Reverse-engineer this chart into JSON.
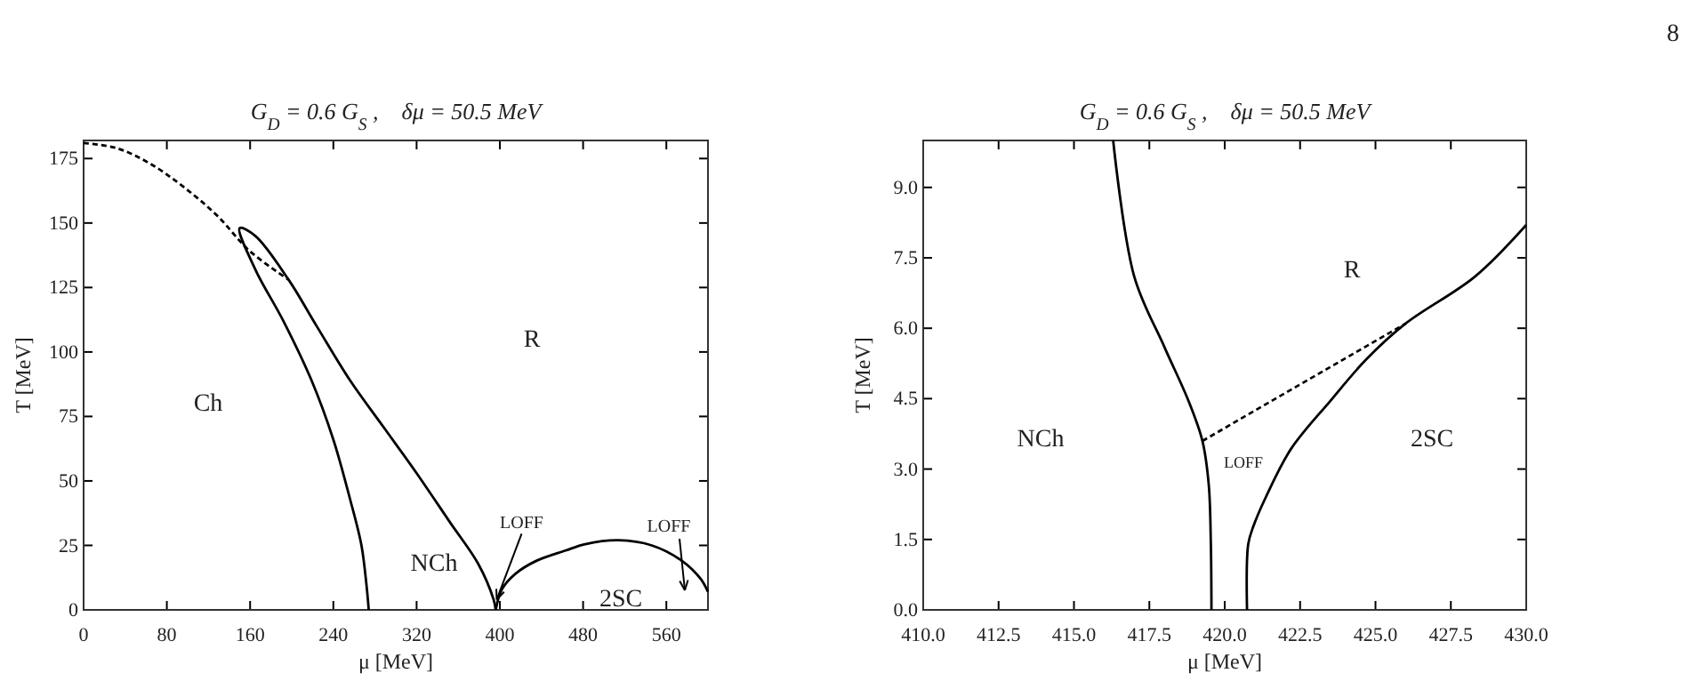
{
  "chart_data": [
    {
      "type": "line",
      "title": "G$_{D}$ = 0.6 G$_{S}$ ,    δμ = 50.5 MeV",
      "xlabel": "μ [MeV]",
      "ylabel": "T [MeV]",
      "xlim": [
        0,
        600
      ],
      "ylim": [
        0,
        182
      ],
      "xticks": [
        0,
        80,
        160,
        240,
        320,
        400,
        480,
        560
      ],
      "yticks": [
        0,
        25,
        50,
        75,
        100,
        125,
        150,
        175
      ],
      "grid": false,
      "series": [
        {
          "color": "#000000",
          "line_style": "dashed",
          "x": [
            0,
            32,
            64,
            96,
            128,
            160,
            197
          ],
          "values": [
            181,
            179,
            173,
            164,
            153,
            139,
            128
          ]
        },
        {
          "color": "#000000",
          "line_style": "solid",
          "x": [
            274,
            272,
            267,
            256,
            240,
            219,
            192,
            165,
            150,
            165,
            197,
            224,
            256,
            288,
            320,
            352,
            379,
            394,
            396
          ],
          "values": [
            0,
            9,
            25,
            43,
            66,
            89,
            112,
            132,
            148,
            145,
            128,
            110,
            89,
            71,
            53,
            34,
            18,
            4,
            0
          ]
        },
        {
          "color": "#000000",
          "line_style": "solid",
          "x": [
            396,
            402,
            415,
            435,
            463,
            482,
            514,
            546,
            575,
            593,
            600
          ],
          "values": [
            0,
            8,
            14,
            19,
            23,
            25.5,
            27,
            25,
            19,
            12,
            7
          ]
        }
      ],
      "annotations": [
        "Ch",
        "NCh",
        "R",
        "2SC",
        {
          "text": "LOFF",
          "x": 397,
          "y": 4
        },
        "LOFF"
      ]
    },
    {
      "type": "line",
      "title": "G$_{D}$ = 0.6 G$_{S}$ ,    δμ = 50.5 MeV",
      "xlabel": "μ [MeV]",
      "ylabel": "T [MeV]",
      "xlim": [
        410,
        430
      ],
      "ylim": [
        0,
        10
      ],
      "xticks": [
        {
          "value": 410,
          "label": "410.0"
        },
        {
          "value": 412.5,
          "label": "412.5"
        },
        {
          "value": 415,
          "label": "415.0"
        },
        {
          "value": 417.5,
          "label": "417.5"
        },
        {
          "value": 420,
          "label": "420.0"
        },
        {
          "value": 422.5,
          "label": "422.5"
        },
        {
          "value": 425,
          "label": "425.0"
        },
        {
          "value": 427.5,
          "label": "427.5"
        },
        {
          "value": 430,
          "label": "430.0"
        }
      ],
      "yticks": [
        {
          "value": 0,
          "label": "0.0"
        },
        {
          "value": 1.5,
          "label": "1.5"
        },
        {
          "value": 3,
          "label": "3.0"
        },
        {
          "value": 4.5,
          "label": "4.5"
        },
        {
          "value": 6,
          "label": "6.0"
        },
        {
          "value": 7.5,
          "label": "7.5"
        },
        {
          "value": 9,
          "label": "9.0"
        }
      ],
      "grid": false,
      "series": [
        {
          "color": "#000000",
          "line_style": "solid",
          "x": [
            416.3,
            417,
            418,
            418.8,
            419.26,
            419.47,
            419.54,
            419.56
          ],
          "values": [
            10,
            7.1,
            5.6,
            4.45,
            3.6,
            2.67,
            1.4,
            0
          ]
        },
        {
          "color": "#000000",
          "line_style": "dashed",
          "x": [
            419.26,
            426
          ],
          "values": [
            3.6,
            6.1
          ]
        },
        {
          "color": "#000000",
          "line_style": "solid",
          "x": [
            420.74,
            420.78,
            420.95,
            421.37,
            422.2,
            423.5,
            424.7,
            426,
            428.3,
            430
          ],
          "values": [
            0,
            1.4,
            1.78,
            2.41,
            3.43,
            4.45,
            5.34,
            6.1,
            7.1,
            8.2
          ]
        }
      ],
      "annotations": [
        "R",
        "NCh",
        "2SC",
        "LOFF",
        "8"
      ]
    }
  ]
}
